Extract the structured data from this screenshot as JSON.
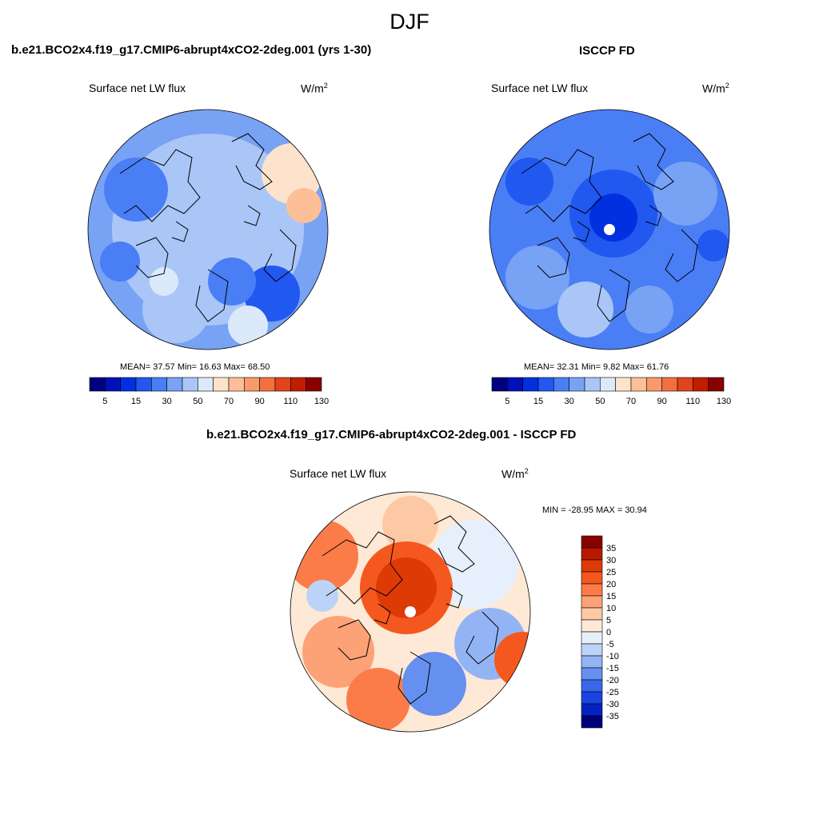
{
  "figure": {
    "title": "DJF"
  },
  "panels": [
    {
      "id": "model",
      "title": "b.e21.BCO2x4.f19_g17.CMIP6-abrupt4xCO2-2deg.001 (yrs 1-30)",
      "field_label": "Surface net LW flux",
      "units_base": "W/m",
      "units_exp": "2",
      "stats": "MEAN=  37.57  Min=  16.63  Max=  68.50"
    },
    {
      "id": "obs",
      "title": "ISCCP FD",
      "field_label": "Surface net LW flux",
      "units_base": "W/m",
      "units_exp": "2",
      "stats": "MEAN=  32.31  Min=   9.82  Max=  61.76"
    },
    {
      "id": "diff",
      "title": "b.e21.BCO2x4.f19_g17.CMIP6-abrupt4xCO2-2deg.001 - ISCCP FD",
      "field_label": "Surface net LW flux",
      "units_base": "W/m",
      "units_exp": "2",
      "stats": "MIN = -28.95 MAX =  30.94"
    }
  ],
  "colors": {
    "abs_colorbar": [
      "#00007f",
      "#0010b8",
      "#0030e0",
      "#2058f0",
      "#4a7ef5",
      "#78a2f4",
      "#a9c6f7",
      "#dce9fb",
      "#fde3cc",
      "#fcbf97",
      "#f99a6a",
      "#f2703f",
      "#e04418",
      "#c01e00",
      "#8a0000"
    ],
    "diff_colorbar": [
      "#8a0000",
      "#b81800",
      "#de3a06",
      "#f5581e",
      "#fb7c48",
      "#fca276",
      "#fdc9a4",
      "#fde9d6",
      "#e6f0fc",
      "#bcd3f8",
      "#93b4f4",
      "#6690f0",
      "#3a66ec",
      "#1a44e0",
      "#0522c0",
      "#00007a"
    ],
    "coastline": "#000000"
  },
  "chart_data": [
    {
      "type": "heatmap",
      "projection": "north-polar-stereographic",
      "title": "b.e21.BCO2x4.f19_g17.CMIP6-abrupt4xCO2-2deg.001 (yrs 1-30)",
      "variable": "Surface net LW flux",
      "units": "W/m2",
      "colorbar_ticks": [
        "5",
        "15",
        "30",
        "50",
        "70",
        "90",
        "110",
        "130"
      ],
      "mean": 37.57,
      "min": 16.63,
      "max": 68.5
    },
    {
      "type": "heatmap",
      "projection": "north-polar-stereographic",
      "title": "ISCCP FD",
      "variable": "Surface net LW flux",
      "units": "W/m2",
      "colorbar_ticks": [
        "5",
        "15",
        "30",
        "50",
        "70",
        "90",
        "110",
        "130"
      ],
      "mean": 32.31,
      "min": 9.82,
      "max": 61.76
    },
    {
      "type": "heatmap",
      "projection": "north-polar-stereographic",
      "title": "b.e21.BCO2x4.f19_g17.CMIP6-abrupt4xCO2-2deg.001 - ISCCP FD",
      "variable": "Surface net LW flux",
      "units": "W/m2",
      "colorbar_ticks": [
        "35",
        "30",
        "25",
        "20",
        "15",
        "10",
        "5",
        "0",
        "-5",
        "-10",
        "-15",
        "-20",
        "-25",
        "-30",
        "-35"
      ],
      "min": -28.95,
      "max": 30.94
    }
  ]
}
